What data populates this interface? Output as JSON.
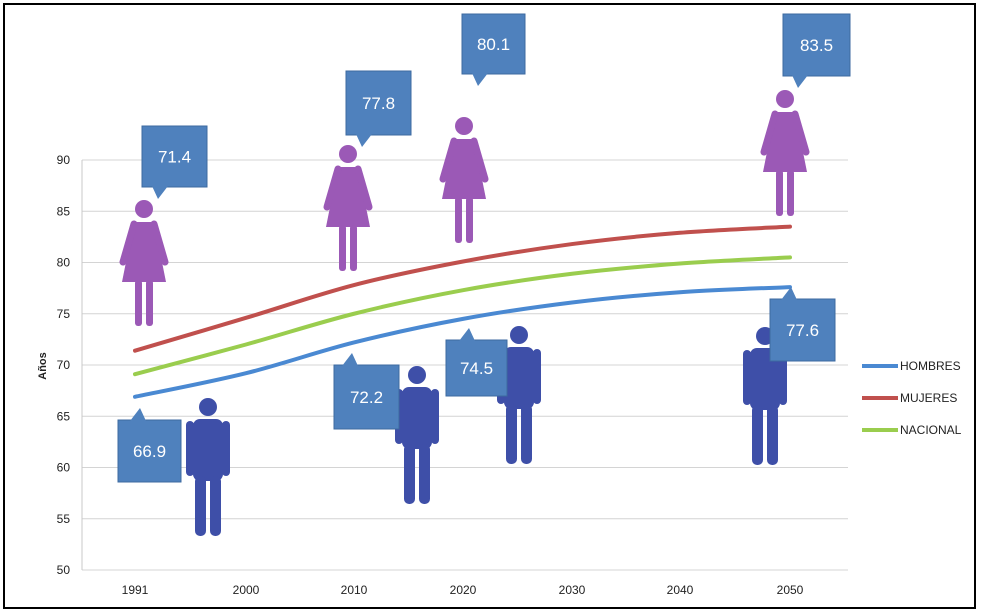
{
  "chart_data": {
    "type": "line",
    "title": "",
    "xlabel": "",
    "ylabel": "Años",
    "x": [
      1991,
      2000,
      2010,
      2020,
      2030,
      2040,
      2050
    ],
    "x_ticks": [
      "1991",
      "2000",
      "2010",
      "2020",
      "2030",
      "2040",
      "2050"
    ],
    "ylim": [
      50,
      90
    ],
    "y_ticks": [
      50,
      55,
      60,
      65,
      70,
      75,
      80,
      85,
      90
    ],
    "grid": true,
    "legend_position": "right",
    "series": [
      {
        "name": "HOMBRES",
        "color": "#4a89d2",
        "values": [
          66.9,
          69.2,
          72.2,
          74.5,
          76.1,
          77.1,
          77.6
        ]
      },
      {
        "name": "MUJERES",
        "color": "#c0504d",
        "values": [
          71.4,
          74.6,
          77.8,
          80.1,
          81.8,
          82.9,
          83.5
        ]
      },
      {
        "name": "NACIONAL",
        "color": "#9acd4e",
        "values": [
          69.1,
          72.0,
          75.0,
          77.3,
          78.9,
          79.9,
          80.5
        ]
      }
    ],
    "annotations": [
      {
        "label": "71.4",
        "year": 1991,
        "group": "MUJERES",
        "icon": "woman-icon"
      },
      {
        "label": "77.8",
        "year": 2010,
        "group": "MUJERES",
        "icon": "woman-icon"
      },
      {
        "label": "80.1",
        "year": 2020,
        "group": "MUJERES",
        "icon": "woman-icon"
      },
      {
        "label": "83.5",
        "year": 2050,
        "group": "MUJERES",
        "icon": "woman-icon"
      },
      {
        "label": "66.9",
        "year": 1991,
        "group": "HOMBRES",
        "icon": "man-icon"
      },
      {
        "label": "72.2",
        "year": 2010,
        "group": "HOMBRES",
        "icon": "man-icon"
      },
      {
        "label": "74.5",
        "year": 2020,
        "group": "HOMBRES",
        "icon": "man-icon"
      },
      {
        "label": "77.6",
        "year": 2050,
        "group": "HOMBRES",
        "icon": "man-icon"
      }
    ],
    "colors": {
      "callout": "#4f81bd",
      "woman": "#9b59b6",
      "man": "#3e4fa8"
    }
  }
}
